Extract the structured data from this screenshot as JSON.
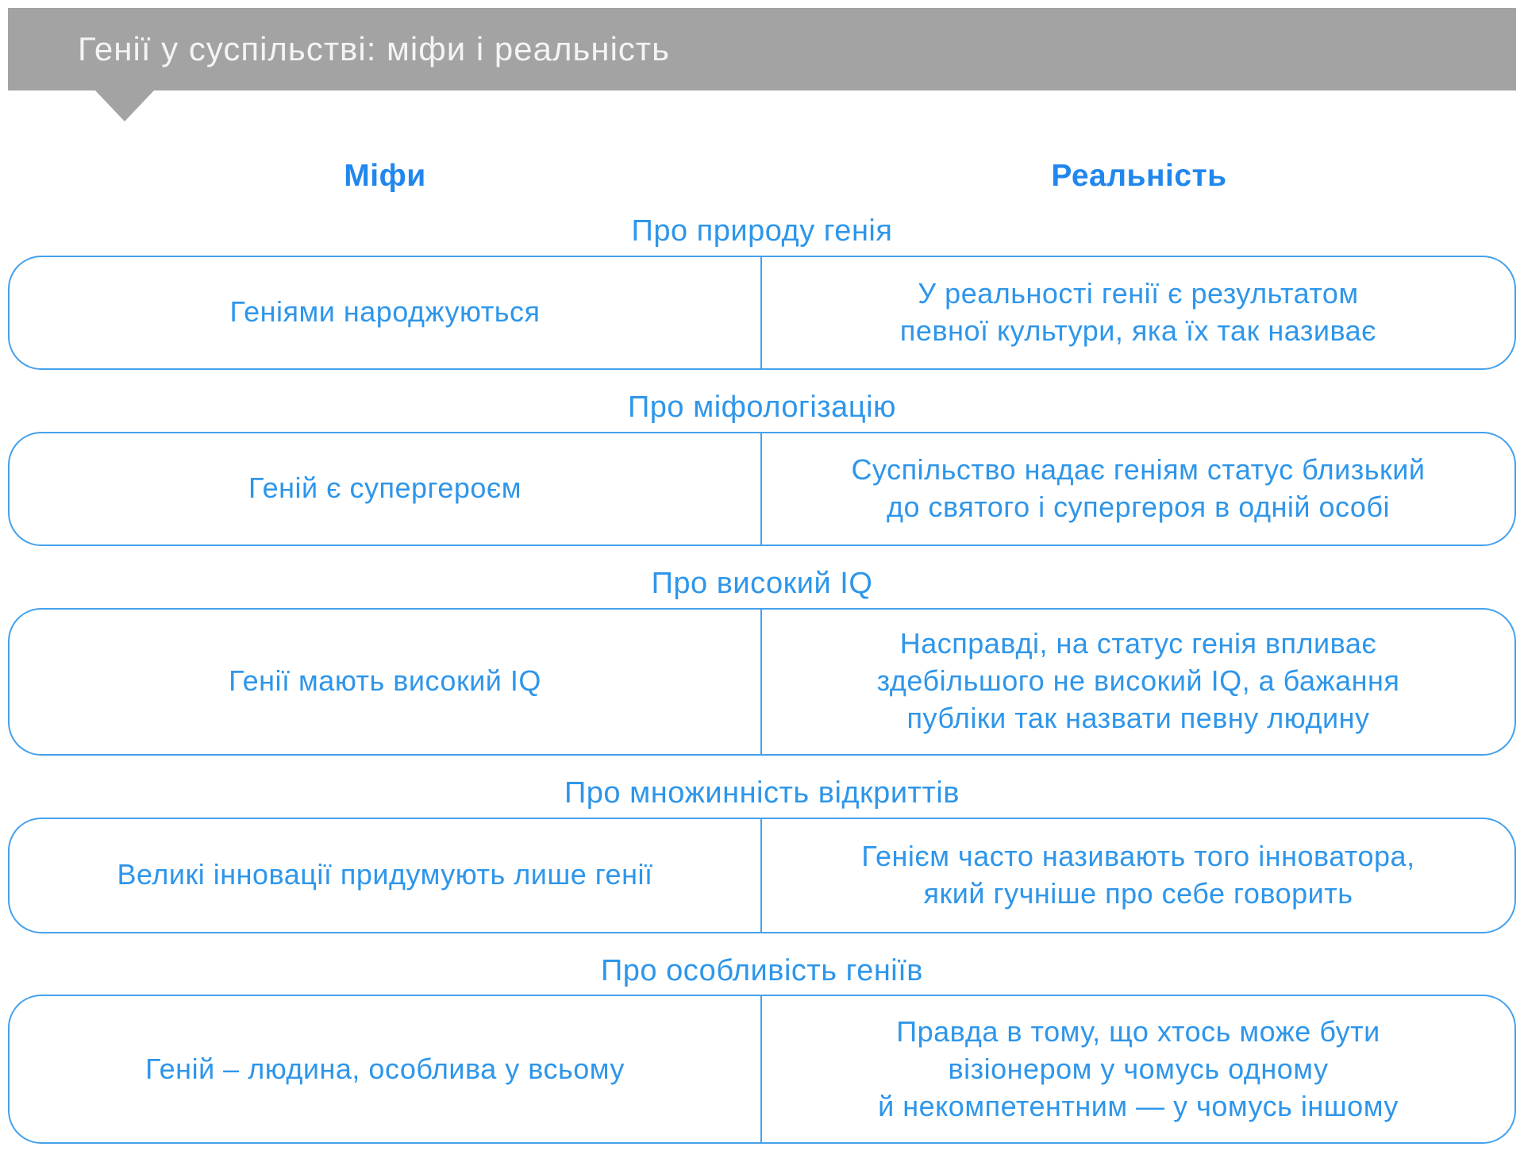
{
  "header": {
    "title": "Генії у суспільстві: міфи і реальність"
  },
  "columns": {
    "myths_label": "Міфи",
    "reality_label": "Реальність"
  },
  "colors": {
    "banner_gray": "#a3a3a3",
    "accent_blue": "#2e96ea",
    "column_header_blue": "#2187ee",
    "border_blue": "#45a1ec"
  },
  "sections": [
    {
      "heading": "Про природу генія",
      "myth": "Геніями народжуються",
      "reality": "У реальності генії є результатом\nпевної культури, яка їх так називає"
    },
    {
      "heading": "Про міфологізацію",
      "myth": "Геній є супергероєм",
      "reality": "Суспільство надає геніям статус близький\nдо святого і супергероя в одній особі"
    },
    {
      "heading": "Про високий IQ",
      "myth": "Генії мають високий IQ",
      "reality": "Насправді, на статус генія впливає\nздебільшого не високий IQ, а бажання\nпубліки так назвати певну людину"
    },
    {
      "heading": "Про множинність відкриттів",
      "myth": "Великі інновації придумують лише генії",
      "reality": "Генієм часто називають того інноватора,\nякий гучніше про себе говорить"
    },
    {
      "heading": "Про особливість геніїв",
      "myth": "Геній – людина, особлива у всьому",
      "reality": "Правда в тому, що хтось може бути\nвізіонером у чомусь одному\nй некомпетентним — у чомусь іншому"
    }
  ]
}
